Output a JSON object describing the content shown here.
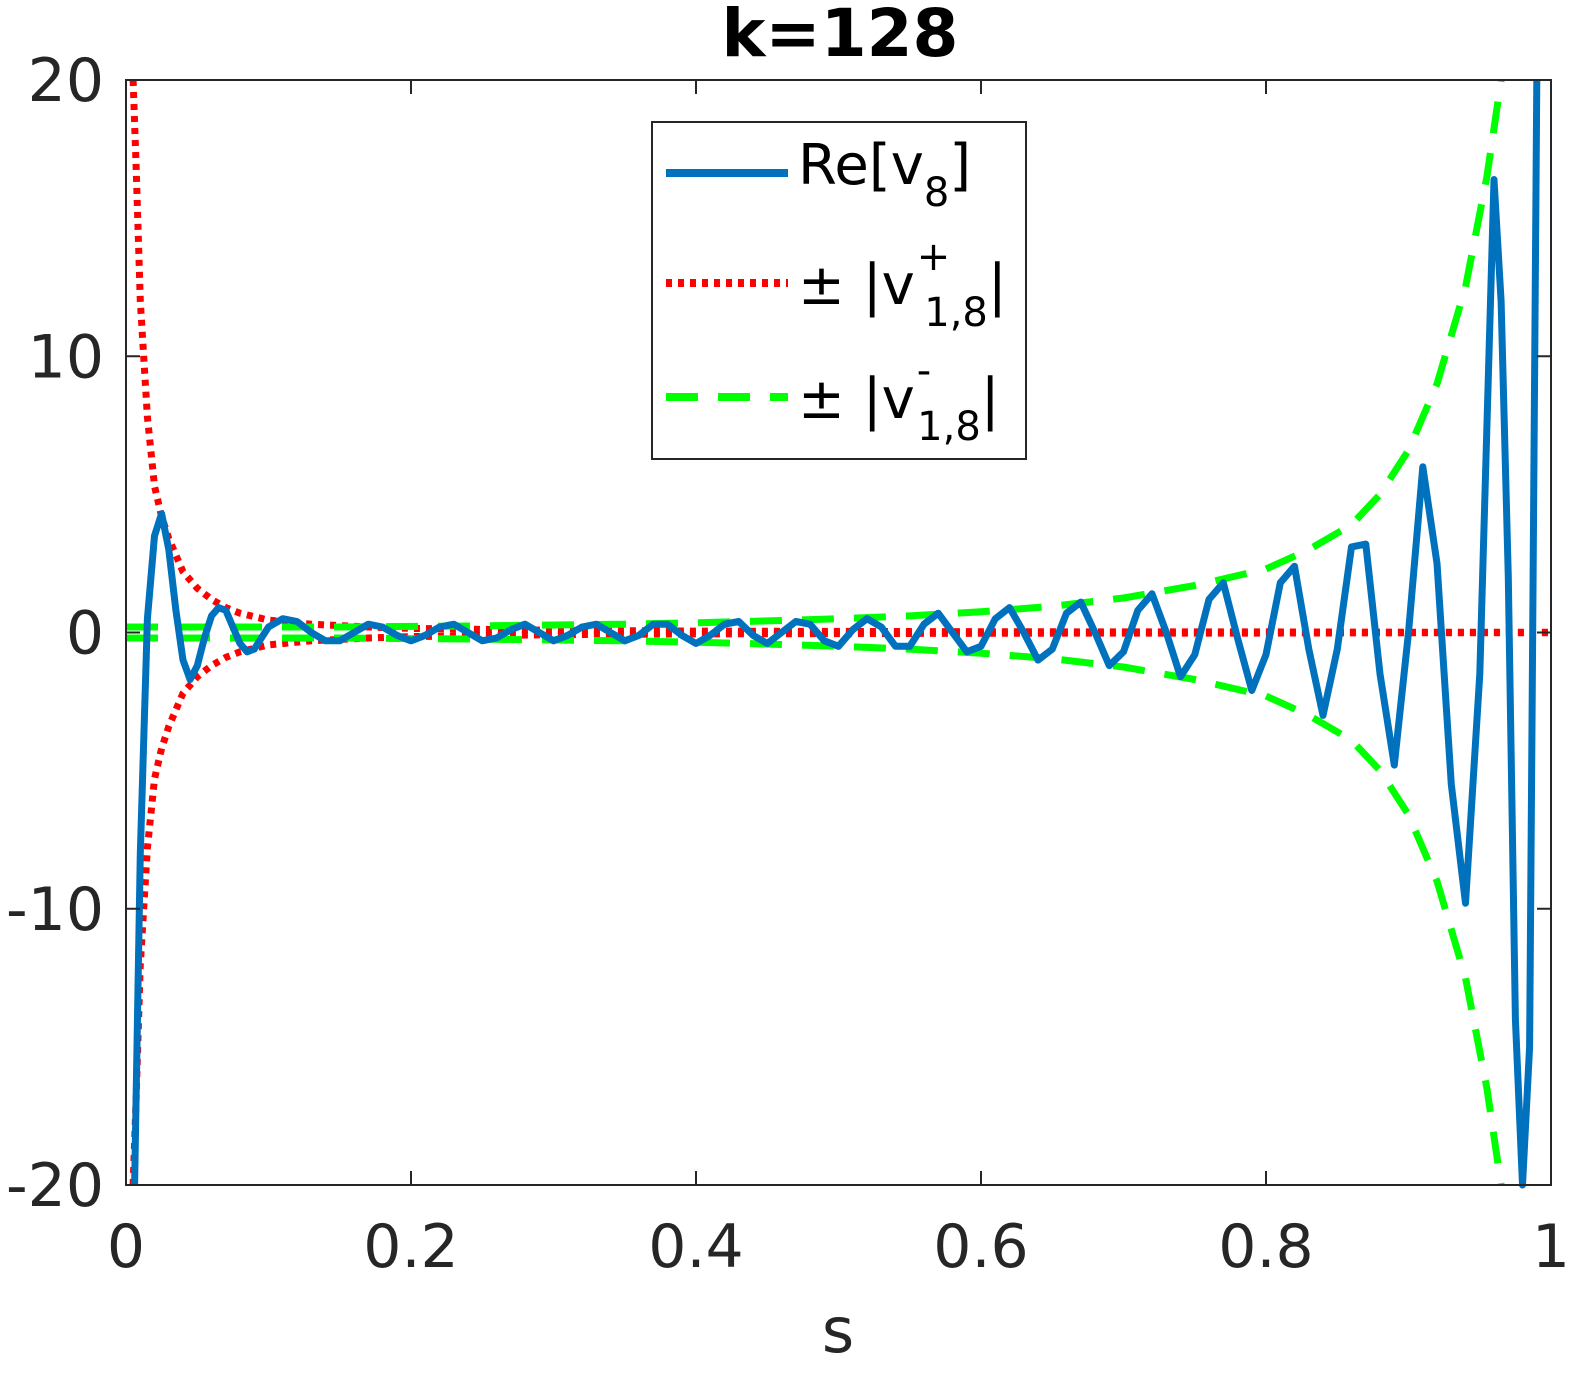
{
  "chart_data": {
    "type": "line",
    "title": "k=128",
    "xlabel": "s",
    "ylabel": "",
    "xlim": [
      0,
      1
    ],
    "ylim": [
      -20,
      20
    ],
    "x_ticks": [
      "0",
      "0.2",
      "0.4",
      "0.6",
      "0.8",
      "1"
    ],
    "y_ticks": [
      "-20",
      "-10",
      "0",
      "10",
      "20"
    ],
    "grid": false,
    "legend_position": "top-center",
    "legend": {
      "entry1": {
        "base": "Re[v",
        "sub": "8",
        "tail": "]"
      },
      "entry2": {
        "base": "± |v",
        "sup": "+",
        "sub": "1,8",
        "tail": "|"
      },
      "entry3": {
        "base": "± |v",
        "sup": "-",
        "sub": "1,8",
        "tail": "|"
      }
    },
    "series": [
      {
        "style": "solid",
        "color": "#0072BD",
        "x": [
          0.006,
          0.01,
          0.015,
          0.02,
          0.025,
          0.03,
          0.035,
          0.04,
          0.045,
          0.05,
          0.055,
          0.06,
          0.065,
          0.07,
          0.075,
          0.08,
          0.085,
          0.09,
          0.095,
          0.1,
          0.11,
          0.12,
          0.13,
          0.14,
          0.15,
          0.16,
          0.17,
          0.18,
          0.19,
          0.2,
          0.21,
          0.22,
          0.23,
          0.24,
          0.25,
          0.26,
          0.27,
          0.28,
          0.29,
          0.3,
          0.31,
          0.32,
          0.33,
          0.34,
          0.35,
          0.36,
          0.37,
          0.38,
          0.39,
          0.4,
          0.41,
          0.42,
          0.43,
          0.44,
          0.45,
          0.46,
          0.47,
          0.48,
          0.49,
          0.5,
          0.51,
          0.52,
          0.53,
          0.54,
          0.55,
          0.56,
          0.57,
          0.58,
          0.59,
          0.6,
          0.61,
          0.62,
          0.63,
          0.64,
          0.65,
          0.66,
          0.67,
          0.68,
          0.69,
          0.7,
          0.71,
          0.72,
          0.73,
          0.74,
          0.75,
          0.76,
          0.77,
          0.78,
          0.79,
          0.8,
          0.81,
          0.82,
          0.83,
          0.84,
          0.85,
          0.86,
          0.87,
          0.88,
          0.89,
          0.9,
          0.91,
          0.92,
          0.93,
          0.94,
          0.95,
          0.96,
          0.965,
          0.97,
          0.975,
          0.98,
          0.985,
          0.99
        ],
        "y": [
          -20,
          -8.0,
          0.5,
          3.5,
          4.3,
          3.0,
          0.8,
          -1.0,
          -1.7,
          -1.2,
          -0.2,
          0.6,
          0.9,
          0.8,
          0.2,
          -0.4,
          -0.7,
          -0.6,
          -0.2,
          0.2,
          0.5,
          0.4,
          0.0,
          -0.3,
          -0.3,
          0.0,
          0.3,
          0.2,
          -0.1,
          -0.3,
          -0.1,
          0.2,
          0.3,
          0.0,
          -0.3,
          -0.2,
          0.1,
          0.3,
          0.0,
          -0.3,
          -0.1,
          0.2,
          0.3,
          0.0,
          -0.3,
          -0.1,
          0.3,
          0.3,
          -0.1,
          -0.4,
          -0.1,
          0.3,
          0.4,
          -0.1,
          -0.4,
          0.0,
          0.4,
          0.3,
          -0.3,
          -0.5,
          0.1,
          0.5,
          0.2,
          -0.5,
          -0.5,
          0.3,
          0.7,
          0.0,
          -0.7,
          -0.5,
          0.5,
          0.9,
          0.0,
          -1.0,
          -0.6,
          0.7,
          1.1,
          0.0,
          -1.2,
          -0.7,
          0.8,
          1.4,
          0.0,
          -1.6,
          -0.8,
          1.2,
          1.8,
          -0.2,
          -2.1,
          -0.8,
          1.8,
          2.4,
          -0.6,
          -3.0,
          -0.6,
          3.1,
          3.2,
          -1.5,
          -4.8,
          0.0,
          6.0,
          2.5,
          -5.5,
          -9.8,
          -1.5,
          16.4,
          12.0,
          2.0,
          -14.0,
          -20,
          -15.0,
          20
        ]
      },
      {
        "style": "dotted",
        "color": "#FF0000",
        "name_sign": "plus-minus",
        "x": [
          0.005,
          0.007,
          0.01,
          0.015,
          0.02,
          0.025,
          0.03,
          0.04,
          0.05,
          0.06,
          0.07,
          0.08,
          0.1,
          0.13,
          0.17,
          0.2,
          0.3,
          0.4,
          0.5,
          0.6,
          0.7,
          0.8,
          0.9,
          1.0
        ],
        "y": [
          20,
          17.0,
          12.0,
          7.8,
          5.3,
          4.2,
          3.4,
          2.2,
          1.6,
          1.2,
          0.9,
          0.7,
          0.45,
          0.3,
          0.2,
          0.15,
          0.08,
          0.05,
          0.04,
          0.03,
          0.02,
          0.02,
          0.01,
          0.01
        ]
      },
      {
        "style": "dashed",
        "color": "#00FF00",
        "name_sign": "plus-minus",
        "x": [
          0.0,
          0.05,
          0.1,
          0.15,
          0.2,
          0.25,
          0.3,
          0.35,
          0.4,
          0.45,
          0.5,
          0.55,
          0.6,
          0.65,
          0.7,
          0.75,
          0.8,
          0.83,
          0.86,
          0.88,
          0.9,
          0.92,
          0.94,
          0.955,
          0.965
        ],
        "y": [
          0.2,
          0.2,
          0.2,
          0.2,
          0.22,
          0.24,
          0.27,
          0.3,
          0.35,
          0.42,
          0.5,
          0.6,
          0.75,
          0.95,
          1.25,
          1.7,
          2.3,
          3.0,
          3.9,
          5.0,
          6.6,
          9.0,
          12.5,
          16.5,
          20
        ]
      }
    ]
  }
}
